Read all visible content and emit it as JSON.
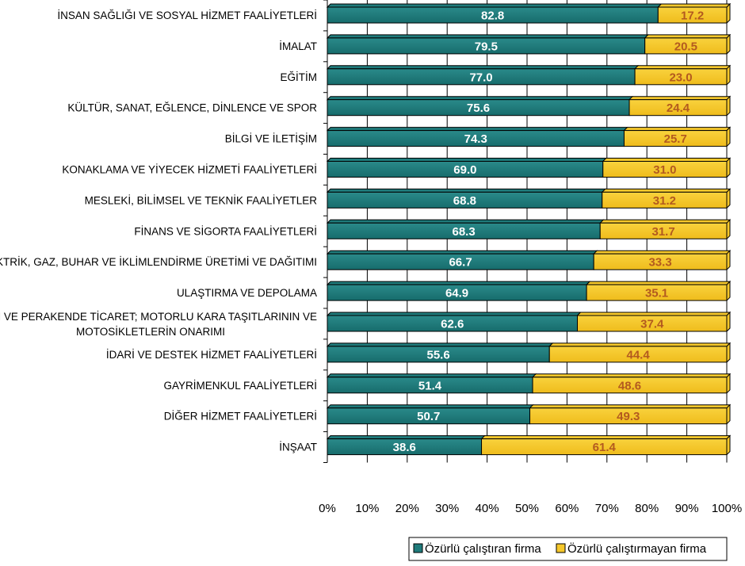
{
  "chart_data": {
    "type": "bar",
    "orientation": "horizontal",
    "stacked": true,
    "percent_stacked": true,
    "categories": [
      [
        "İNSAN SAĞLIĞI VE SOSYAL HİZMET FAALİYETLERİ"
      ],
      [
        "İMALAT"
      ],
      [
        "EĞİTİM"
      ],
      [
        "KÜLTÜR, SANAT, EĞLENCE, DİNLENCE VE SPOR"
      ],
      [
        "BİLGİ VE İLETİŞİM"
      ],
      [
        "KONAKLAMA VE YİYECEK HİZMETİ FAALİYETLERİ"
      ],
      [
        "MESLEKİ, BİLİMSEL VE TEKNİK FAALİYETLER"
      ],
      [
        "FİNANS VE SİGORTA FAALİYETLERİ"
      ],
      [
        "ELEKTRİK, GAZ, BUHAR VE İKLİMLENDİRME ÜRETİMİ VE DAĞITIMI"
      ],
      [
        "ULAŞTIRMA VE DEPOLAMA"
      ],
      [
        "TOPTAN VE PERAKENDE TİCARET; MOTORLU KARA TAŞITLARININ VE",
        "MOTOSİKLETLERİN ONARIMI"
      ],
      [
        "İDARİ VE DESTEK HİZMET FAALİYETLERİ"
      ],
      [
        "GAYRİMENKUL FAALİYETLERİ"
      ],
      [
        "DİĞER HİZMET FAALİYETLERİ"
      ],
      [
        "İNŞAAT"
      ]
    ],
    "series": [
      {
        "name": "Özürlü çalıştıran firma",
        "color": "#1f7b7b",
        "label_color": "#ffffff",
        "values": [
          82.8,
          79.5,
          77.0,
          75.6,
          74.3,
          69.0,
          68.8,
          68.3,
          66.7,
          64.9,
          62.6,
          55.6,
          51.4,
          50.7,
          38.6
        ],
        "labels": [
          "82.8",
          "79.5",
          "77.0",
          "75.6",
          "74.3",
          "69.0",
          "68.8",
          "68.3",
          "66.7",
          "64.9",
          "62.6",
          "55.6",
          "51.4",
          "50.7",
          "38.6"
        ]
      },
      {
        "name": "Özürlü çalıştırmayan firma",
        "color": "#f6c82b",
        "label_color": "#b35a1f",
        "values": [
          17.2,
          20.5,
          23.0,
          24.4,
          25.7,
          31.0,
          31.2,
          31.7,
          33.3,
          35.1,
          37.4,
          44.4,
          48.6,
          49.3,
          61.4
        ],
        "labels": [
          "17.2",
          "20.5",
          "23.0",
          "24.4",
          "25.7",
          "31.0",
          "31.2",
          "31.7",
          "33.3",
          "35.1",
          "37.4",
          "44.4",
          "48.6",
          "49.3",
          "61.4"
        ]
      }
    ],
    "x_ticks": [
      "0%",
      "10%",
      "20%",
      "30%",
      "40%",
      "50%",
      "60%",
      "70%",
      "80%",
      "90%",
      "100%"
    ],
    "xlim": [
      0,
      100
    ],
    "grid": true,
    "gridlines": "vertical",
    "legend_position": "bottom-right",
    "title": "",
    "xlabel": "",
    "ylabel": ""
  }
}
